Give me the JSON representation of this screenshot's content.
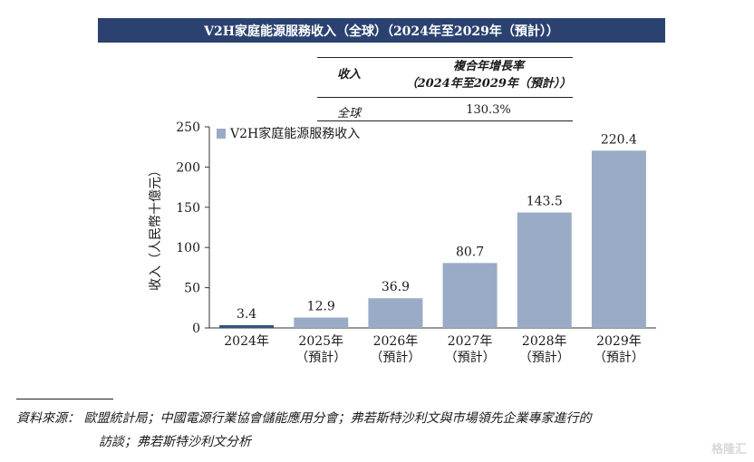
{
  "title": "V2H家庭能源服務收入（全球）（2024年至2029年（預計））",
  "cagr_table": {
    "col1_header": "收入",
    "col2_header_line1": "複合年增長率",
    "col2_header_line2": "（2024年至2029年（預計））",
    "row_label": "全球",
    "row_value": "130.3%"
  },
  "chart_data": {
    "type": "bar",
    "title": "V2H家庭能源服務收入（全球）（2024年至2029年（預計））",
    "categories": [
      "2024年",
      "2025年",
      "2026年",
      "2027年",
      "2028年",
      "2029年"
    ],
    "category_sublabels": [
      "",
      "（預計）",
      "（預計）",
      "（預計）",
      "（預計）",
      "（預計）"
    ],
    "series": [
      {
        "name": "V2H家庭能源服務收入",
        "values": [
          3.4,
          12.9,
          36.9,
          80.7,
          143.5,
          220.4
        ]
      }
    ],
    "data_labels": [
      "3.4",
      "12.9",
      "36.9",
      "80.7",
      "143.5",
      "220.4"
    ],
    "xlabel": "",
    "ylabel": "收入（人民幣十億元）",
    "ylim": [
      0,
      250
    ],
    "yticks": [
      0,
      50,
      100,
      150,
      200,
      250
    ],
    "legend_position": "top-left",
    "grid": false,
    "colors": {
      "first_bar": "#2f5380",
      "bars": "#9aabc6"
    }
  },
  "source": {
    "line1": "資料來源： 歐盟統計局；中國電源行業協會儲能應用分會；弗若斯特沙利文與市場領先企業專家進行的",
    "line2": "訪談；弗若斯特沙利文分析"
  },
  "watermark": "格隆汇"
}
